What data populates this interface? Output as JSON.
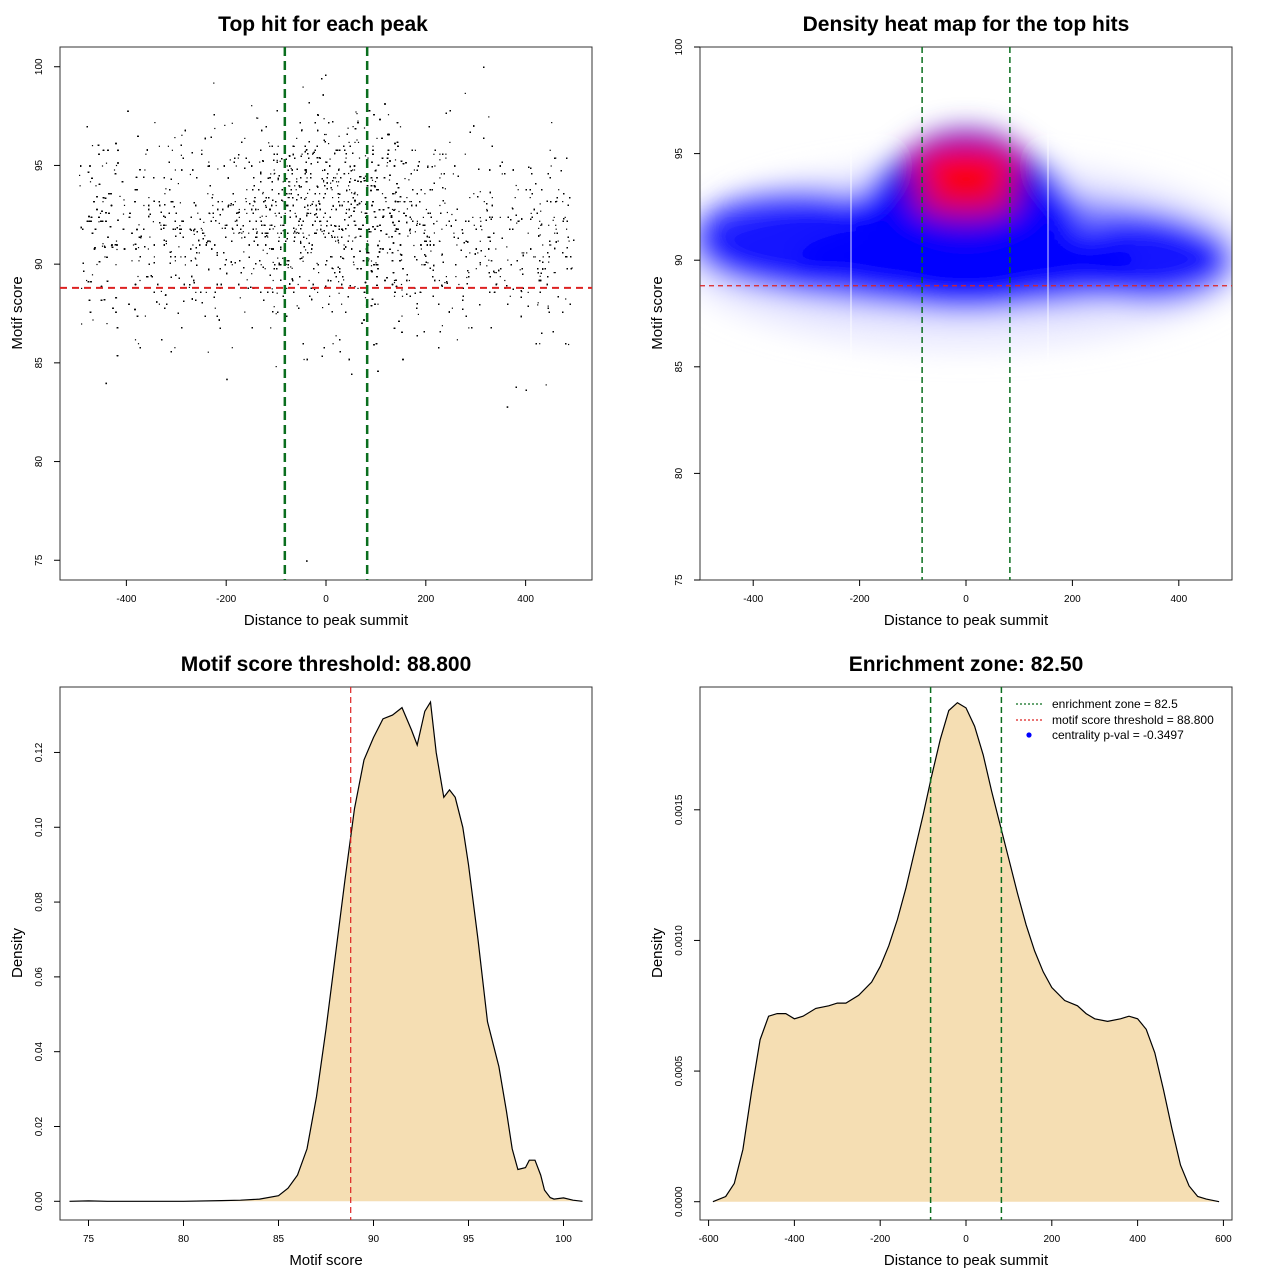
{
  "chart_data": [
    {
      "type": "scatter",
      "title": "Top hit for each peak",
      "xlabel": "Distance to peak summit",
      "ylabel": "Motif score",
      "xlim": [
        -533,
        533
      ],
      "ylim": [
        74,
        101
      ],
      "xticks": [
        -400,
        -200,
        0,
        200,
        400
      ],
      "yticks": [
        75,
        80,
        85,
        90,
        95,
        100
      ],
      "threshold_y": 88.8,
      "threshold_color": "#dd2222",
      "zone_x": [
        -82.5,
        82.5
      ],
      "zone_color": "#0a6e1e",
      "point_count": 12000,
      "point_x_range": [
        -500,
        500
      ],
      "point_y_range": [
        75,
        100
      ],
      "outliers": [
        {
          "x": -40,
          "y": 75.0
        },
        {
          "x": 362,
          "y": 82.8
        },
        {
          "x": -200,
          "y": 84.2
        },
        {
          "x": -442,
          "y": 84.0
        }
      ]
    },
    {
      "type": "heatmap",
      "title": "Density heat map for the top hits",
      "xlabel": "Distance to peak summit",
      "ylabel": "Motif score",
      "xlim": [
        -500,
        500
      ],
      "ylim": [
        75,
        100
      ],
      "xticks": [
        -400,
        -200,
        0,
        200,
        400
      ],
      "yticks": [
        75,
        80,
        85,
        90,
        95,
        100
      ],
      "threshold_y": 88.8,
      "threshold_color": "#dd2222",
      "zone_x": [
        -82.5,
        82.5
      ],
      "zone_color": "#0a6e1e",
      "colors": {
        "low": "#ffffff",
        "mid": "#0000ff",
        "high": "#ff0000"
      }
    },
    {
      "type": "area",
      "title": "Motif score threshold: 88.800",
      "xlabel": "Motif score",
      "ylabel": "Density",
      "xlim": [
        73.5,
        101.5
      ],
      "ylim": [
        -0.005,
        0.1375
      ],
      "xticks": [
        75,
        80,
        85,
        90,
        95,
        100
      ],
      "yticks": [
        0.0,
        0.02,
        0.04,
        0.06,
        0.08,
        0.1,
        0.12
      ],
      "ytick_labels": [
        "0.00",
        "0.02",
        "0.04",
        "0.06",
        "0.08",
        "0.10",
        "0.12"
      ],
      "threshold_x": 88.8,
      "threshold_color": "#dd2222",
      "fill": "#f5deb3",
      "x": [
        74,
        75,
        76,
        80,
        82,
        83,
        84,
        85,
        85.5,
        86,
        86.5,
        87,
        87.5,
        88,
        88.5,
        89,
        89.5,
        90,
        90.5,
        91,
        91.5,
        92,
        92.3,
        92.7,
        93,
        93.3,
        93.7,
        94,
        94.3,
        94.7,
        95,
        95.5,
        96,
        96.3,
        96.6,
        97,
        97.3,
        97.6,
        98,
        98.2,
        98.5,
        98.8,
        99,
        99.3,
        99.5,
        100,
        100.5,
        101
      ],
      "y": [
        0,
        0.0001,
        0,
        0,
        0.0002,
        0.0003,
        0.0006,
        0.0015,
        0.0035,
        0.007,
        0.014,
        0.028,
        0.046,
        0.066,
        0.086,
        0.105,
        0.118,
        0.124,
        0.129,
        0.13,
        0.132,
        0.126,
        0.122,
        0.131,
        0.1335,
        0.12,
        0.108,
        0.11,
        0.108,
        0.1,
        0.09,
        0.07,
        0.048,
        0.042,
        0.036,
        0.024,
        0.014,
        0.0085,
        0.009,
        0.011,
        0.011,
        0.007,
        0.003,
        0.001,
        0.0006,
        0.0009,
        0.0003,
        0
      ]
    },
    {
      "type": "area",
      "title": "Enrichment zone: 82.50",
      "xlabel": "Distance to peak summit",
      "ylabel": "Density",
      "xlim": [
        -620,
        620
      ],
      "ylim": [
        -7e-05,
        0.00197
      ],
      "xticks": [
        -600,
        -400,
        -200,
        0,
        200,
        400,
        600
      ],
      "yticks": [
        0.0,
        0.0005,
        0.001,
        0.0015
      ],
      "ytick_labels": [
        "0.0000",
        "0.0005",
        "0.0010",
        "0.0015"
      ],
      "zone_x": [
        -82.5,
        82.5
      ],
      "zone_color": "#0a6e1e",
      "fill": "#f5deb3",
      "legend": {
        "position": "top-right",
        "items": [
          {
            "label": "enrichment zone = 82.5",
            "color": "#0a6e1e",
            "kind": "dotted-line"
          },
          {
            "label": "motif score threshold = 88.800",
            "color": "#dd2222",
            "kind": "dotted-line"
          },
          {
            "label": "centrality p-val = -0.3497",
            "color": "#0000ff",
            "kind": "point"
          }
        ]
      },
      "x": [
        -590,
        -560,
        -540,
        -520,
        -500,
        -480,
        -460,
        -440,
        -420,
        -400,
        -380,
        -350,
        -320,
        -300,
        -280,
        -250,
        -220,
        -200,
        -180,
        -160,
        -140,
        -120,
        -100,
        -80,
        -60,
        -40,
        -20,
        0,
        20,
        40,
        60,
        80,
        100,
        120,
        140,
        160,
        180,
        200,
        230,
        260,
        280,
        300,
        330,
        360,
        380,
        400,
        420,
        440,
        460,
        480,
        500,
        520,
        540,
        560,
        590
      ],
      "y": [
        0,
        2e-05,
        7e-05,
        0.0002,
        0.00042,
        0.00062,
        0.00071,
        0.00072,
        0.00072,
        0.0007,
        0.00071,
        0.00074,
        0.00075,
        0.00076,
        0.00076,
        0.00079,
        0.00084,
        0.0009,
        0.00098,
        0.00108,
        0.0012,
        0.00134,
        0.00148,
        0.00163,
        0.00177,
        0.00188,
        0.00191,
        0.00189,
        0.00182,
        0.00171,
        0.00157,
        0.00144,
        0.00131,
        0.00118,
        0.00106,
        0.00096,
        0.00088,
        0.00082,
        0.00077,
        0.00075,
        0.00072,
        0.0007,
        0.00069,
        0.0007,
        0.00071,
        0.0007,
        0.00066,
        0.00057,
        0.00043,
        0.00028,
        0.00014,
        6e-05,
        2e-05,
        1e-05,
        0
      ]
    }
  ]
}
